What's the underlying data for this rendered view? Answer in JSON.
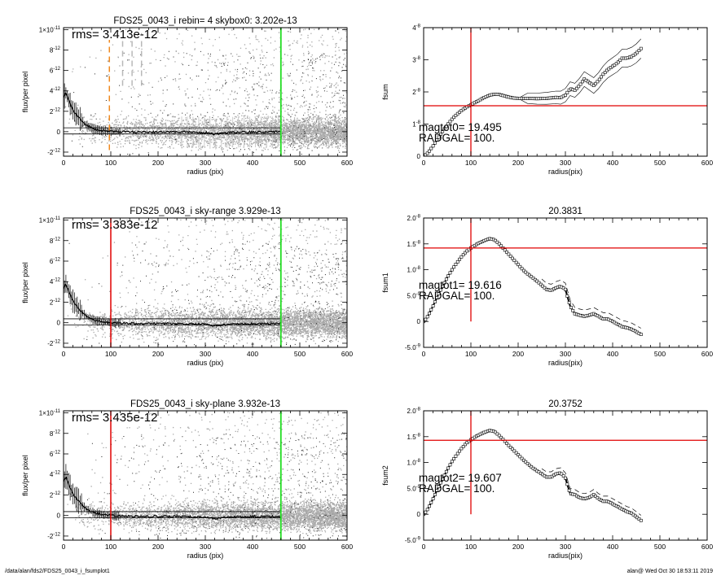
{
  "footer": {
    "path": "/data/alan/fds2/FDS25_0043_i_fsumplot1",
    "stamp": "alan@  Wed Oct 30 18:53:11 2019"
  },
  "colors": {
    "scatter": "#a8a8a8",
    "profile": "#000000",
    "red_marker": "#e00000",
    "green_marker": "#22dd22",
    "orange_marker": "#f08a20",
    "dash_marker": "#b8b8b8"
  },
  "chart_data": [
    {
      "type": "scatter",
      "title": "FDS25_0043_i rebin= 4    skybox0:  3.202e-13",
      "xlabel": "radius (pix)",
      "ylabel": "flux/per pixel",
      "xlim": [
        0,
        600
      ],
      "ylim": [
        -2.4e-12,
        1.02e-11
      ],
      "xticks": [
        0,
        100,
        200,
        300,
        400,
        500,
        600
      ],
      "yticks": [
        {
          "v": -2e-12,
          "m": "-2",
          "e": "-12"
        },
        {
          "v": 0,
          "m": "0",
          "e": ""
        },
        {
          "v": 2e-12,
          "m": "2",
          "e": "-12"
        },
        {
          "v": 4e-12,
          "m": "4",
          "e": "-12"
        },
        {
          "v": 6e-12,
          "m": "6",
          "e": "-12"
        },
        {
          "v": 8e-12,
          "m": "8",
          "e": "-12"
        },
        {
          "v": 1e-11,
          "m": "1",
          "e": "-11",
          "pre": "×10"
        }
      ],
      "annotation": "rms= 3.413e-12",
      "vlines": [
        {
          "x": 97,
          "color": "orange",
          "style": "dashed",
          "y1": -1.8e-12,
          "y2": 9e-12
        },
        {
          "x": 125,
          "color": "gray",
          "style": "dashed",
          "y1": 4.5e-12,
          "y2": 9e-12
        },
        {
          "x": 145,
          "color": "gray",
          "style": "dashed",
          "y1": 4.5e-12,
          "y2": 9e-12
        },
        {
          "x": 165,
          "color": "gray",
          "style": "dashed",
          "y1": 4.5e-12,
          "y2": 9e-12
        },
        {
          "x": 460,
          "color": "green",
          "style": "solid"
        }
      ],
      "hlines": [
        3.8e-13,
        -2.2e-13
      ],
      "profile_x": [
        0,
        5,
        10,
        15,
        20,
        30,
        40,
        50,
        60,
        70,
        80,
        90,
        100,
        120,
        140,
        160,
        200,
        250,
        300,
        320,
        350,
        400,
        460
      ],
      "profile_y": [
        3.3e-12,
        3.8e-12,
        3.2e-12,
        2.6e-12,
        2.1e-12,
        1.5e-12,
        1e-12,
        6e-13,
        3.5e-13,
        2e-13,
        1e-13,
        5e-14,
        2e-14,
        -2e-14,
        0.0,
        -5e-14,
        -3e-14,
        0.0,
        -8e-14,
        -2.5e-13,
        -5e-14,
        -3e-14,
        0.0
      ],
      "errbars": true,
      "gray_errbars": true,
      "seed": 11
    },
    {
      "type": "line",
      "title": "",
      "xlabel": "radius(pix)",
      "ylabel": "fsum",
      "xlim": [
        0,
        600
      ],
      "ylim": [
        0,
        4e-08
      ],
      "xticks": [
        0,
        100,
        200,
        300,
        400,
        500,
        600
      ],
      "yticks": [
        {
          "v": 0,
          "m": "0",
          "e": ""
        },
        {
          "v": 1e-08,
          "m": "1",
          "e": "-8"
        },
        {
          "v": 2e-08,
          "m": "2",
          "e": "-8"
        },
        {
          "v": 3e-08,
          "m": "3",
          "e": "-8"
        },
        {
          "v": 4e-08,
          "m": "4",
          "e": "-8"
        }
      ],
      "annotation_lines": [
        "magtot0=  19.495",
        "RADGAL=    100."
      ],
      "vline": 100,
      "hline": 1.57e-08,
      "x": [
        0,
        5,
        10,
        20,
        30,
        40,
        50,
        60,
        70,
        80,
        90,
        100,
        110,
        120,
        130,
        140,
        150,
        160,
        170,
        180,
        190,
        200,
        220,
        240,
        260,
        280,
        290,
        300,
        310,
        320,
        330,
        340,
        350,
        360,
        370,
        380,
        390,
        400,
        410,
        420,
        430,
        440,
        450,
        460
      ],
      "y": [
        0,
        5e-10,
        1.2e-09,
        3.2e-09,
        5.5e-09,
        7.7e-09,
        9.7e-09,
        1.15e-08,
        1.3e-08,
        1.42e-08,
        1.52e-08,
        1.6e-08,
        1.68e-08,
        1.76e-08,
        1.84e-08,
        1.9e-08,
        1.93e-08,
        1.92e-08,
        1.88e-08,
        1.84e-08,
        1.81e-08,
        1.8e-08,
        1.8e-08,
        1.79e-08,
        1.8e-08,
        1.83e-08,
        1.82e-08,
        1.9e-08,
        2.1e-08,
        2.05e-08,
        2.2e-08,
        2.4e-08,
        2.3e-08,
        2.2e-08,
        2.35e-08,
        2.55e-08,
        2.7e-08,
        2.8e-08,
        2.9e-08,
        3.05e-08,
        3.05e-08,
        3.1e-08,
        3.2e-08,
        3.35e-08
      ],
      "envelope": 1.5e-09,
      "seed": 21
    },
    {
      "type": "scatter",
      "title": "FDS25_0043_i sky-range  3.929e-13",
      "xlabel": "radius (pix)",
      "ylabel": "flux/per pixel",
      "xlim": [
        0,
        600
      ],
      "ylim": [
        -2.4e-12,
        1.02e-11
      ],
      "xticks": [
        0,
        100,
        200,
        300,
        400,
        500,
        600
      ],
      "yticks": [
        {
          "v": -2e-12,
          "m": "-2",
          "e": "-12"
        },
        {
          "v": 0,
          "m": "0",
          "e": ""
        },
        {
          "v": 2e-12,
          "m": "2",
          "e": "-12"
        },
        {
          "v": 4e-12,
          "m": "4",
          "e": "-12"
        },
        {
          "v": 6e-12,
          "m": "6",
          "e": "-12"
        },
        {
          "v": 8e-12,
          "m": "8",
          "e": "-12"
        },
        {
          "v": 1e-11,
          "m": "1",
          "e": "-11",
          "pre": "×10"
        }
      ],
      "annotation": "rms= 3.383e-12",
      "vlines": [
        {
          "x": 100,
          "color": "red",
          "style": "solid"
        },
        {
          "x": 460,
          "color": "green",
          "style": "solid"
        }
      ],
      "hlines": [
        3.8e-13,
        -2.2e-13
      ],
      "profile_x": [
        0,
        5,
        10,
        15,
        20,
        30,
        40,
        50,
        60,
        70,
        80,
        90,
        100,
        120,
        140,
        160,
        200,
        250,
        300,
        320,
        350,
        400,
        460
      ],
      "profile_y": [
        3.3e-12,
        3.8e-12,
        3.2e-12,
        2.6e-12,
        2.1e-12,
        1.5e-12,
        1e-12,
        6e-13,
        3.5e-13,
        2e-13,
        1e-13,
        5e-14,
        0.0,
        -5e-14,
        -5e-14,
        -1e-13,
        -8e-14,
        -1e-13,
        -1.5e-13,
        -3e-13,
        -1.5e-13,
        -1e-13,
        -1e-13
      ],
      "errbars": true,
      "gray_errbars": false,
      "seed": 33
    },
    {
      "type": "line",
      "title": "20.3831",
      "xlabel": "radius(pix)",
      "ylabel": "fsum1",
      "xlim": [
        0,
        600
      ],
      "ylim": [
        -5e-09,
        2e-08
      ],
      "xticks": [
        0,
        100,
        200,
        300,
        400,
        500,
        600
      ],
      "yticks": [
        {
          "v": -5e-09,
          "m": "-5.0",
          "e": "-9"
        },
        {
          "v": 0,
          "m": "0",
          "e": ""
        },
        {
          "v": 5e-09,
          "m": "5.0",
          "e": "-9"
        },
        {
          "v": 1e-08,
          "m": "1.0",
          "e": "-8"
        },
        {
          "v": 1.5e-08,
          "m": "1.5",
          "e": "-8"
        },
        {
          "v": 2e-08,
          "m": "2.0",
          "e": "-8"
        }
      ],
      "annotation_lines": [
        "magtot1=  19.616",
        "RADGAL=    100."
      ],
      "vline": 100,
      "hline": 1.42e-08,
      "x": [
        0,
        5,
        10,
        20,
        30,
        40,
        50,
        60,
        70,
        80,
        90,
        100,
        110,
        120,
        130,
        140,
        150,
        160,
        170,
        180,
        190,
        200,
        210,
        220,
        230,
        240,
        250,
        260,
        270,
        280,
        290,
        300,
        310,
        320,
        330,
        340,
        350,
        360,
        370,
        380,
        390,
        400,
        410,
        420,
        430,
        440,
        450,
        460
      ],
      "y": [
        0,
        5e-10,
        1.2e-09,
        3e-09,
        5e-09,
        6.8e-09,
        8.5e-09,
        1e-08,
        1.13e-08,
        1.25e-08,
        1.35e-08,
        1.42e-08,
        1.48e-08,
        1.53e-08,
        1.57e-08,
        1.6e-08,
        1.58e-08,
        1.5e-08,
        1.4e-08,
        1.3e-08,
        1.2e-08,
        1.1e-08,
        1e-08,
        9.2e-09,
        8.5e-09,
        7.8e-09,
        7e-09,
        6.2e-09,
        6e-09,
        6.5e-09,
        6.8e-09,
        6.2e-09,
        3e-09,
        1.5e-09,
        1.2e-09,
        1e-09,
        1.2e-09,
        1.5e-09,
        1e-09,
        5e-10,
        5e-10,
        0.0,
        -5e-10,
        -1e-09,
        -1.2e-09,
        -1.5e-09,
        -2e-09,
        -2.5e-09
      ],
      "dashed_above": 1.2e-09,
      "seed": 44
    },
    {
      "type": "scatter",
      "title": "FDS25_0043_i sky-plane  3.932e-13",
      "xlabel": "radius (pix)",
      "ylabel": "flux/per pixel",
      "xlim": [
        0,
        600
      ],
      "ylim": [
        -2.4e-12,
        1.02e-11
      ],
      "xticks": [
        0,
        100,
        200,
        300,
        400,
        500,
        600
      ],
      "yticks": [
        {
          "v": -2e-12,
          "m": "-2",
          "e": "-12"
        },
        {
          "v": 0,
          "m": "0",
          "e": ""
        },
        {
          "v": 2e-12,
          "m": "2",
          "e": "-12"
        },
        {
          "v": 4e-12,
          "m": "4",
          "e": "-12"
        },
        {
          "v": 6e-12,
          "m": "6",
          "e": "-12"
        },
        {
          "v": 8e-12,
          "m": "8",
          "e": "-12"
        },
        {
          "v": 1e-11,
          "m": "1",
          "e": "-11",
          "pre": "×10"
        }
      ],
      "annotation": "rms= 3.435e-12",
      "vlines": [
        {
          "x": 100,
          "color": "red",
          "style": "solid"
        },
        {
          "x": 460,
          "color": "green",
          "style": "solid"
        }
      ],
      "hlines": [
        3.8e-13,
        -2.2e-13
      ],
      "profile_x": [
        0,
        5,
        10,
        15,
        20,
        30,
        40,
        50,
        60,
        70,
        80,
        90,
        100,
        120,
        140,
        160,
        200,
        250,
        300,
        320,
        350,
        400,
        460
      ],
      "profile_y": [
        3.3e-12,
        3.8e-12,
        3.2e-12,
        2.6e-12,
        2.1e-12,
        1.5e-12,
        1e-12,
        6e-13,
        3.5e-13,
        2e-13,
        1e-13,
        5e-14,
        0.0,
        -5e-14,
        -5e-14,
        -1e-13,
        -8e-14,
        -1e-13,
        -1.5e-13,
        -3e-13,
        -1.5e-13,
        -1e-13,
        -1e-13
      ],
      "errbars": true,
      "gray_errbars": false,
      "seed": 55
    },
    {
      "type": "line",
      "title": "20.3752",
      "xlabel": "radius(pix)",
      "ylabel": "fsum2",
      "xlim": [
        0,
        600
      ],
      "ylim": [
        -5e-09,
        2e-08
      ],
      "xticks": [
        0,
        100,
        200,
        300,
        400,
        500,
        600
      ],
      "yticks": [
        {
          "v": -5e-09,
          "m": "-5.0",
          "e": "-9"
        },
        {
          "v": 0,
          "m": "0",
          "e": ""
        },
        {
          "v": 5e-09,
          "m": "5.0",
          "e": "-9"
        },
        {
          "v": 1e-08,
          "m": "1.0",
          "e": "-8"
        },
        {
          "v": 1.5e-08,
          "m": "1.5",
          "e": "-8"
        },
        {
          "v": 2e-08,
          "m": "2.0",
          "e": "-8"
        }
      ],
      "annotation_lines": [
        "magtot2=  19.607",
        "RADGAL=    100."
      ],
      "vline": 100,
      "hline": 1.43e-08,
      "x": [
        0,
        5,
        10,
        20,
        30,
        40,
        50,
        60,
        70,
        80,
        90,
        100,
        110,
        120,
        130,
        140,
        150,
        160,
        170,
        180,
        190,
        200,
        210,
        220,
        230,
        240,
        250,
        260,
        270,
        280,
        290,
        300,
        310,
        320,
        330,
        340,
        350,
        360,
        370,
        380,
        390,
        400,
        410,
        420,
        430,
        440,
        450,
        460
      ],
      "y": [
        0,
        5e-10,
        1.2e-09,
        3e-09,
        5e-09,
        6.8e-09,
        8.6e-09,
        1.02e-08,
        1.15e-08,
        1.27e-08,
        1.37e-08,
        1.44e-08,
        1.5e-08,
        1.55e-08,
        1.59e-08,
        1.62e-08,
        1.6e-08,
        1.52e-08,
        1.43e-08,
        1.33e-08,
        1.24e-08,
        1.15e-08,
        1.06e-08,
        9.8e-09,
        9e-09,
        8.4e-09,
        7.8e-09,
        7.2e-09,
        7.2e-09,
        7.8e-09,
        8e-09,
        7e-09,
        4e-09,
        3.8e-09,
        3.2e-09,
        3e-09,
        3.2e-09,
        3.8e-09,
        3e-09,
        2.5e-09,
        2.5e-09,
        2e-09,
        1.5e-09,
        1e-09,
        5e-10,
        2e-10,
        -5e-10,
        -1.2e-09
      ],
      "dashed_above": 1e-09,
      "seed": 66
    }
  ]
}
